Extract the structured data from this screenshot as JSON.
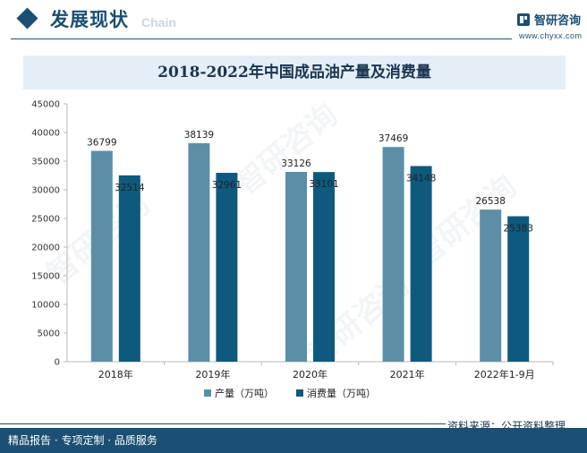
{
  "header": {
    "title": "发展现状",
    "subtitle_en": "Chain",
    "brand_name": "智研咨询",
    "brand_url": "www.chyxx.com"
  },
  "watermark": "智研咨询",
  "colors": {
    "primary": "#1b4f73",
    "series_production": "#5b8fa8",
    "series_consumption": "#0e5a7e"
  },
  "chart_data": {
    "type": "bar",
    "title": "2018-2022年中国成品油产量及消费量",
    "categories": [
      "2018年",
      "2019年",
      "2020年",
      "2021年",
      "2022年1-9月"
    ],
    "series": [
      {
        "name": "产量（万吨）",
        "values": [
          36799,
          38139,
          33126,
          37469,
          26538
        ]
      },
      {
        "name": "消费量（万吨）",
        "values": [
          32514,
          32961,
          33101,
          34148,
          25383
        ]
      }
    ],
    "ylim": [
      0,
      45000
    ],
    "yticks": [
      0,
      5000,
      10000,
      15000,
      20000,
      25000,
      30000,
      35000,
      40000,
      45000
    ],
    "xlabel": "",
    "ylabel": "",
    "grid": false,
    "legend": "bottom-center"
  },
  "footer": {
    "source": "资料来源：公开资料整理",
    "tagline": "精品报告 · 专项定制 · 品质服务"
  }
}
